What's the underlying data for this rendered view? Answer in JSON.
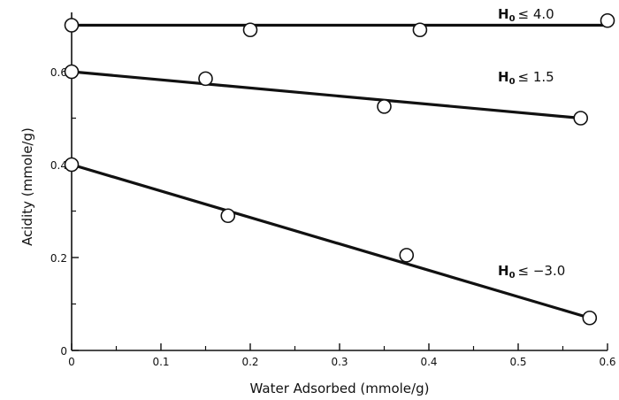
{
  "chart_data": {
    "type": "scatter",
    "xlabel": "Water Adsorbed (mmole/g)",
    "ylabel": "Acidity (mmole/g)",
    "xlim": [
      0,
      0.6
    ],
    "ylim": [
      0,
      0.72
    ],
    "x_ticks": [
      0,
      0.1,
      0.2,
      0.3,
      0.4,
      0.5,
      0.6
    ],
    "x_tick_labels": [
      "0",
      "0.1",
      "0.2",
      "0.3",
      "0.4",
      "0.5",
      "0.6"
    ],
    "y_ticks": [
      0,
      0.2,
      0.4,
      0.6
    ],
    "y_tick_labels": [
      "0",
      "0.2",
      "0.4",
      "0.6"
    ],
    "grid": false,
    "series": [
      {
        "name": "H0 ≤ 4.0",
        "label_main": "H",
        "label_sub": "0",
        "label_rest": "≤ 4.0",
        "points": [
          [
            0,
            0.7
          ],
          [
            0.2,
            0.69
          ],
          [
            0.39,
            0.69
          ],
          [
            0.6,
            0.71
          ]
        ],
        "fit_line": [
          [
            0,
            0.7
          ],
          [
            0.6,
            0.7
          ]
        ]
      },
      {
        "name": "H0 ≤ 1.5",
        "label_main": "H",
        "label_sub": "0",
        "label_rest": "≤ 1.5",
        "points": [
          [
            0,
            0.6
          ],
          [
            0.15,
            0.585
          ],
          [
            0.35,
            0.525
          ],
          [
            0.57,
            0.5
          ]
        ],
        "fit_line": [
          [
            0,
            0.6
          ],
          [
            0.57,
            0.5
          ]
        ]
      },
      {
        "name": "H0 ≤ -3.0",
        "label_main": "H",
        "label_sub": "0",
        "label_rest": "≤ −3.0",
        "points": [
          [
            0,
            0.4
          ],
          [
            0.175,
            0.29
          ],
          [
            0.375,
            0.205
          ],
          [
            0.58,
            0.07
          ]
        ],
        "fit_line": [
          [
            0,
            0.4
          ],
          [
            0.58,
            0.07
          ]
        ]
      }
    ]
  }
}
